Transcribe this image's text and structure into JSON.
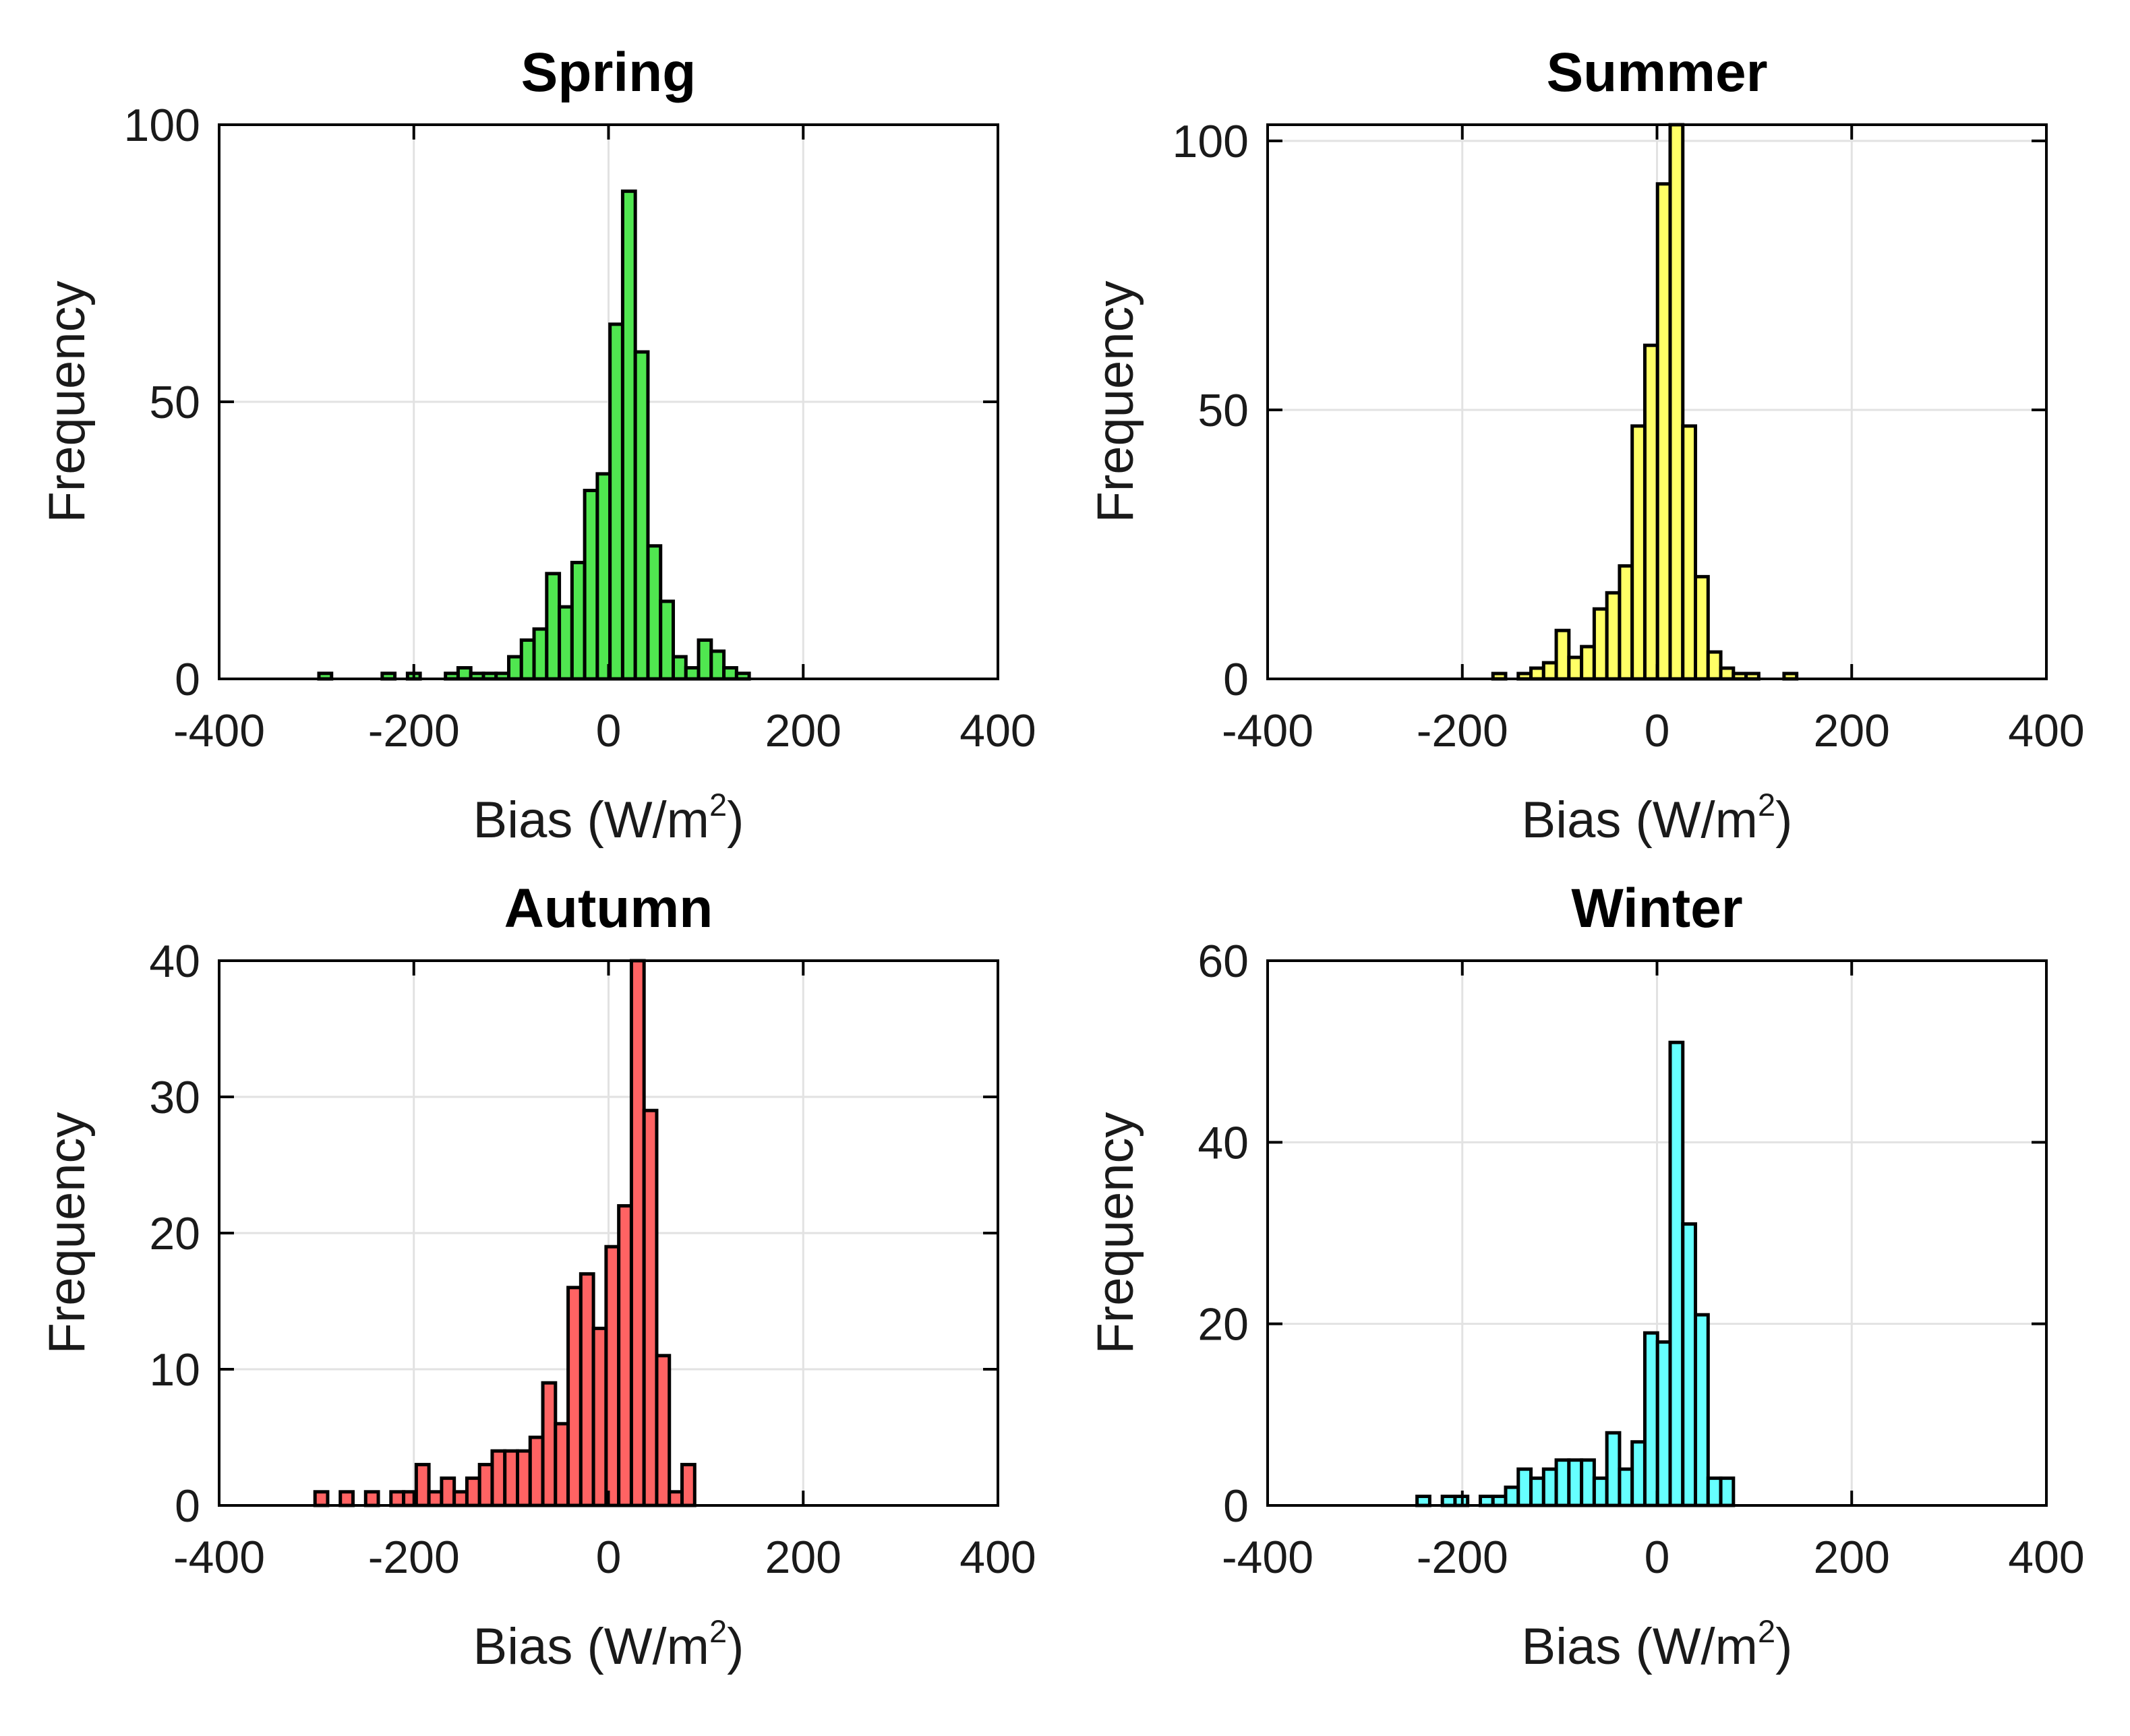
{
  "figure": {
    "background": "#FFFFFF",
    "grid_color": "#E2E2E2",
    "axis_color": "#000000",
    "tick_label_color": "#1A1A1A",
    "title_color": "#000000",
    "grid_visible": true,
    "legend": "none"
  },
  "chart_data": [
    {
      "type": "bar",
      "subtype": "histogram",
      "title": "Spring",
      "xlabel": "Bias (W/m²)",
      "ylabel": "Frequency",
      "xlim": [
        -400,
        400
      ],
      "xticks": [
        -400,
        -200,
        0,
        200,
        400
      ],
      "ylim": [
        0,
        100
      ],
      "yticks": [
        0,
        50,
        100
      ],
      "bar_fill": "#50E650",
      "bar_edge": "#000000",
      "bin_width": 13,
      "first_bin_center": -291,
      "counts": [
        1,
        0,
        0,
        0,
        0,
        1,
        0,
        1,
        0,
        0,
        1,
        2,
        1,
        1,
        1,
        4,
        7,
        9,
        19,
        13,
        21,
        34,
        37,
        64,
        88,
        59,
        24,
        14,
        4,
        2,
        7,
        5,
        2,
        1
      ],
      "peak_value": 88,
      "peak_clipped_at_ymax": false
    },
    {
      "type": "bar",
      "subtype": "histogram",
      "title": "Summer",
      "xlabel": "Bias (W/m²)",
      "ylabel": "Frequency",
      "xlim": [
        -400,
        400
      ],
      "xticks": [
        -400,
        -200,
        0,
        200,
        400
      ],
      "ylim": [
        0,
        103
      ],
      "yticks": [
        0,
        50,
        100
      ],
      "bar_fill": "#FFFF66",
      "bar_edge": "#000000",
      "bin_width": 13,
      "first_bin_center": -162,
      "counts": [
        1,
        0,
        1,
        2,
        3,
        9,
        4,
        6,
        13,
        16,
        21,
        47,
        62,
        92,
        103,
        47,
        19,
        5,
        2,
        1,
        1,
        0,
        0,
        1
      ],
      "peak_value": 103,
      "peak_clipped_at_ymax": true
    },
    {
      "type": "bar",
      "subtype": "histogram",
      "title": "Autumn",
      "xlabel": "Bias (W/m²)",
      "ylabel": "Frequency",
      "xlim": [
        -400,
        400
      ],
      "xticks": [
        -400,
        -200,
        0,
        200,
        400
      ],
      "ylim": [
        0,
        40
      ],
      "yticks": [
        0,
        10,
        20,
        30,
        40
      ],
      "bar_fill": "#FF6363",
      "bar_edge": "#000000",
      "bin_width": 13,
      "first_bin_center": -295,
      "counts": [
        1,
        0,
        1,
        0,
        1,
        0,
        1,
        1,
        3,
        1,
        2,
        1,
        2,
        3,
        4,
        4,
        4,
        5,
        9,
        6,
        16,
        17,
        13,
        19,
        22,
        40,
        29,
        11,
        1,
        3
      ],
      "peak_value": 40,
      "peak_clipped_at_ymax": true
    },
    {
      "type": "bar",
      "subtype": "histogram",
      "title": "Winter",
      "xlabel": "Bias (W/m²)",
      "ylabel": "Frequency",
      "xlim": [
        -400,
        400
      ],
      "xticks": [
        -400,
        -200,
        0,
        200,
        400
      ],
      "ylim": [
        0,
        60
      ],
      "yticks": [
        0,
        20,
        40,
        60
      ],
      "bar_fill": "#66FFFF",
      "bar_edge": "#000000",
      "bin_width": 13,
      "first_bin_center": -240,
      "counts": [
        1,
        0,
        1,
        1,
        0,
        1,
        1,
        2,
        4,
        3,
        4,
        5,
        5,
        5,
        3,
        8,
        4,
        7,
        19,
        18,
        51,
        31,
        21,
        3,
        3
      ],
      "peak_value": 51,
      "peak_clipped_at_ymax": false
    }
  ]
}
